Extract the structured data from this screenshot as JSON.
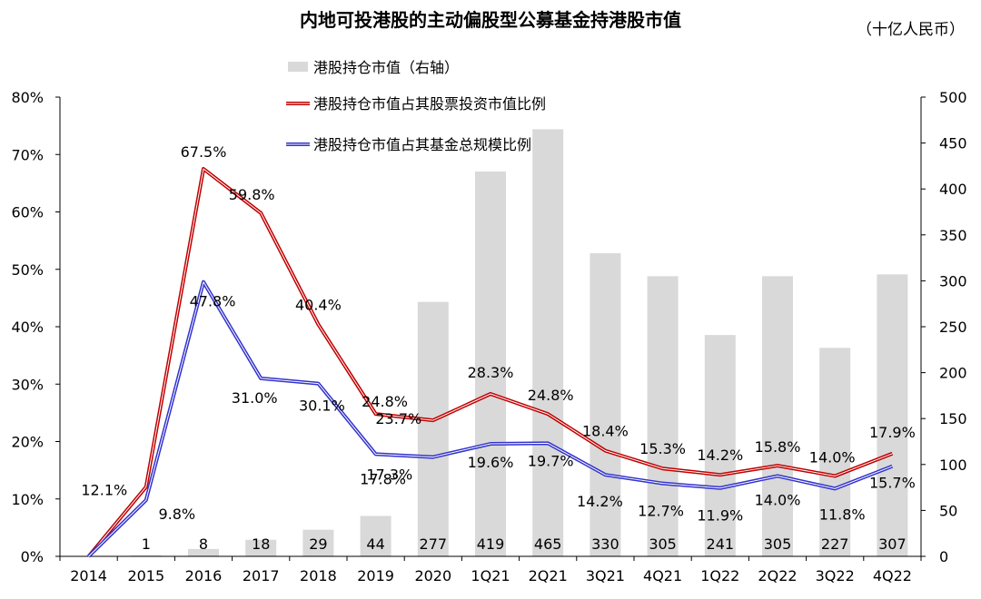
{
  "title": "内地可投港股的主动偏股型公募基金持港股市值",
  "unit": "（十亿人民币）",
  "colors": {
    "bar": "#d9d9d9",
    "red": "#c00000",
    "blue": "#3333cc"
  },
  "chart_data": {
    "type": "bar+line",
    "categories": [
      "2014",
      "2015",
      "2016",
      "2017",
      "2018",
      "2019",
      "2020",
      "1Q21",
      "2Q21",
      "3Q21",
      "4Q21",
      "1Q22",
      "2Q22",
      "3Q22",
      "4Q22"
    ],
    "y_left": {
      "ticks": [
        "0%",
        "10%",
        "20%",
        "30%",
        "40%",
        "50%",
        "60%",
        "70%",
        "80%"
      ],
      "ylim": [
        0,
        80
      ]
    },
    "y_right": {
      "ticks": [
        "0",
        "50",
        "100",
        "150",
        "200",
        "250",
        "300",
        "350",
        "400",
        "450",
        "500"
      ],
      "ylim": [
        0,
        500
      ]
    },
    "bars": {
      "name": "港股持仓市值（右轴）",
      "values": [
        0,
        1,
        8,
        18,
        29,
        44,
        277,
        419,
        465,
        330,
        305,
        241,
        305,
        227,
        307
      ],
      "labels": [
        "",
        "1",
        "8",
        "18",
        "29",
        "44",
        "277",
        "419",
        "465",
        "330",
        "305",
        "241",
        "305",
        "227",
        "307"
      ]
    },
    "series": [
      {
        "name": "港股持仓市值占其股票投资市值比例",
        "color": "red",
        "values": [
          0,
          12.1,
          67.5,
          59.8,
          40.4,
          24.8,
          23.7,
          28.3,
          24.8,
          18.4,
          15.3,
          14.2,
          15.8,
          14.0,
          17.9
        ],
        "labels": [
          "",
          "12.1%",
          "67.5%",
          "59.8%",
          "40.4%",
          "24.8%",
          "23.7%",
          "28.3%",
          "24.8%",
          "18.4%",
          "15.3%",
          "14.2%",
          "15.8%",
          "14.0%",
          "17.9%"
        ]
      },
      {
        "name": "港股持仓市值占其基金总规模比例",
        "color": "blue",
        "values": [
          0,
          9.8,
          47.8,
          31.0,
          30.1,
          17.8,
          17.3,
          19.6,
          19.7,
          14.2,
          12.7,
          11.9,
          14.0,
          11.8,
          15.7
        ],
        "labels": [
          "",
          "9.8%",
          "47.8%",
          "31.0%",
          "30.1%",
          "17.8%",
          "17.3%",
          "19.6%",
          "19.7%",
          "14.2%",
          "12.7%",
          "11.9%",
          "14.0%",
          "11.8%",
          "15.7%"
        ]
      }
    ],
    "legend": "top-center",
    "grid": false
  }
}
